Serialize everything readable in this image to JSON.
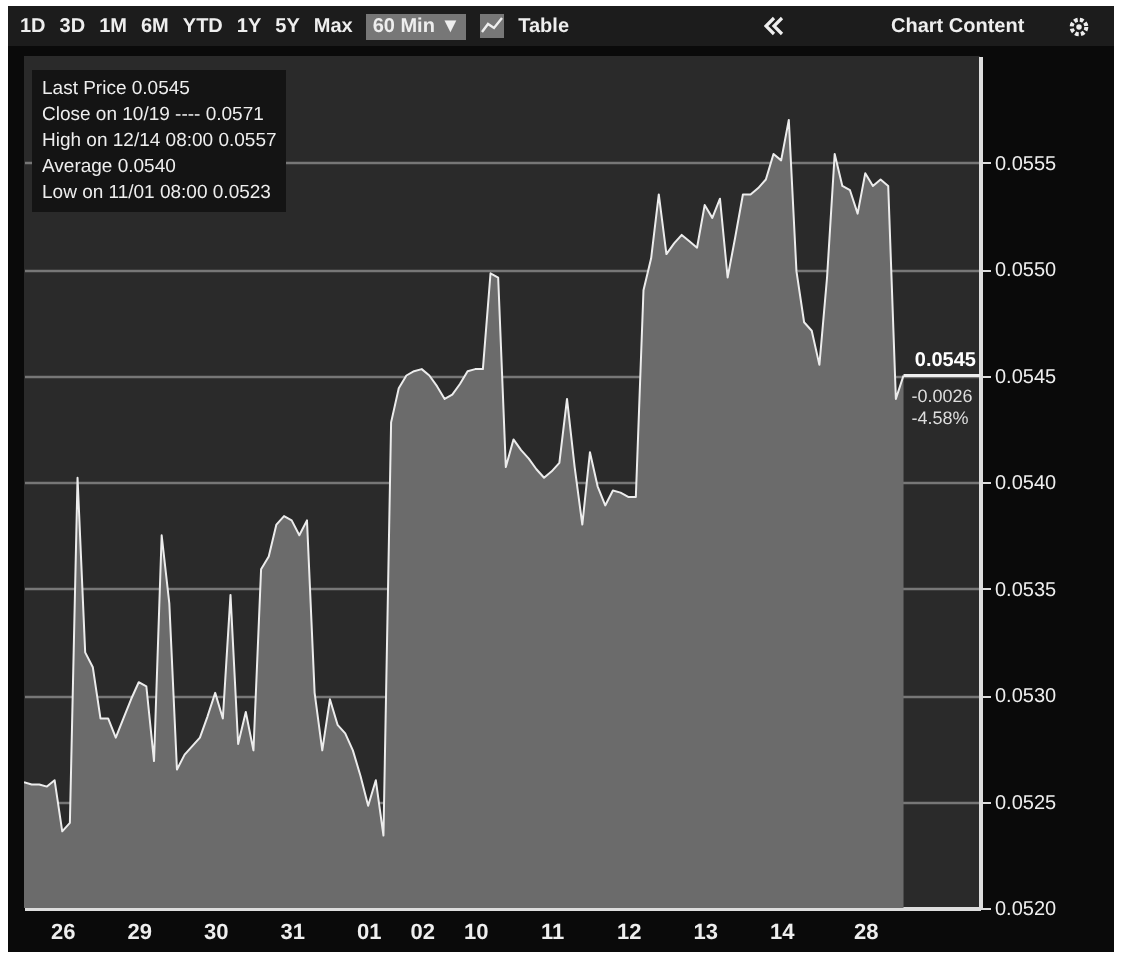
{
  "chart_data": {
    "type": "area",
    "categories": [
      null,
      null,
      null,
      null,
      null,
      "26",
      null,
      null,
      null,
      null,
      null,
      null,
      null,
      null,
      null,
      "29",
      null,
      null,
      null,
      null,
      null,
      null,
      null,
      null,
      null,
      "30",
      null,
      null,
      null,
      null,
      null,
      null,
      null,
      null,
      null,
      "31",
      null,
      null,
      null,
      null,
      null,
      null,
      null,
      null,
      null,
      "01",
      null,
      null,
      null,
      null,
      null,
      null,
      "02",
      null,
      null,
      null,
      null,
      null,
      null,
      "10",
      null,
      null,
      null,
      null,
      null,
      null,
      null,
      null,
      null,
      "11",
      null,
      null,
      null,
      null,
      null,
      null,
      null,
      null,
      null,
      "12",
      null,
      null,
      null,
      null,
      null,
      null,
      null,
      null,
      null,
      "13",
      null,
      null,
      null,
      null,
      null,
      null,
      null,
      null,
      null,
      "14",
      null,
      null,
      null,
      null,
      null,
      null,
      null,
      null,
      null,
      null,
      "28",
      null,
      null,
      null,
      null,
      null,
      null,
      null,
      null,
      null,
      null,
      null,
      null,
      null,
      null,
      null
    ],
    "series": [
      {
        "color": "#6b6b6b",
        "values": [
          0.05259,
          0.05258,
          0.05258,
          0.05257,
          0.0526,
          0.05236,
          0.0524,
          0.05402,
          0.0532,
          0.05313,
          0.05289,
          0.05289,
          0.0528,
          0.05289,
          0.05298,
          0.05306,
          0.05304,
          0.05269,
          0.05375,
          0.05343,
          0.05265,
          0.05272,
          0.05276,
          0.0528,
          0.0529,
          0.05301,
          0.05289,
          0.05347,
          0.05277,
          0.05292,
          0.05274,
          0.05359,
          0.05365,
          0.0538,
          0.05384,
          0.05382,
          0.05375,
          0.05382,
          0.05301,
          0.05274,
          0.05298,
          0.05286,
          0.05282,
          0.05274,
          0.05262,
          0.05248,
          0.0526,
          0.05234,
          0.05428,
          0.05444,
          0.0545,
          0.05452,
          0.05453,
          0.0545,
          0.05445,
          0.05439,
          0.05441,
          0.05446,
          0.05452,
          0.05453,
          0.05453,
          0.05498,
          0.05496,
          0.05407,
          0.0542,
          0.05415,
          0.05411,
          0.05406,
          0.05402,
          0.05405,
          0.05409,
          0.05439,
          0.05407,
          0.0538,
          0.05414,
          0.05398,
          0.05389,
          0.05396,
          0.05395,
          0.05393,
          0.05393,
          0.0549,
          0.05505,
          0.05535,
          0.05507,
          0.05512,
          0.05516,
          0.05513,
          0.0551,
          0.0553,
          0.05524,
          0.05533,
          0.05496,
          0.05515,
          0.05535,
          0.05535,
          0.05538,
          0.05542,
          0.05554,
          0.05551,
          0.0557,
          0.05499,
          0.05475,
          0.05471,
          0.05455,
          0.05496,
          0.05554,
          0.05539,
          0.05537,
          0.05526,
          0.05545,
          0.05539,
          0.05542,
          0.05539,
          0.05439,
          0.0545,
          null,
          null,
          null,
          null,
          null,
          null,
          null,
          null,
          null,
          null
        ]
      }
    ],
    "ylim": [
      0.052,
      0.056
    ],
    "yticks": [
      {
        "value": 0.052,
        "label": "0.0520"
      },
      0.0525,
      {
        "value": 0.053,
        "label": "0.0530"
      },
      0.0535,
      {
        "value": 0.054,
        "label": "0.0540"
      },
      0.0545,
      {
        "value": 0.055,
        "label": "0.0550"
      },
      0.0555
    ],
    "grid": "y",
    "ref_lines": [
      {
        "axis": "y",
        "value": 0.0545,
        "label": "0.0545"
      }
    ],
    "annotations": [
      "Last Price 0.0545",
      "Close on 10/19 ---- 0.0571",
      "High on 12/14 08:00 0.0557",
      "Average 0.0540",
      "Low on 11/01 08:00 0.0523",
      "1D",
      "3D",
      "1M",
      "6M",
      "YTD",
      "1Y",
      "5Y",
      "Max",
      "60 Min ▼",
      "Table",
      "Chart Content",
      {
        "text": "-0.0026",
        "y": 0.0545
      },
      {
        "text": "-4.58%",
        "y": 0.0545
      }
    ]
  }
}
